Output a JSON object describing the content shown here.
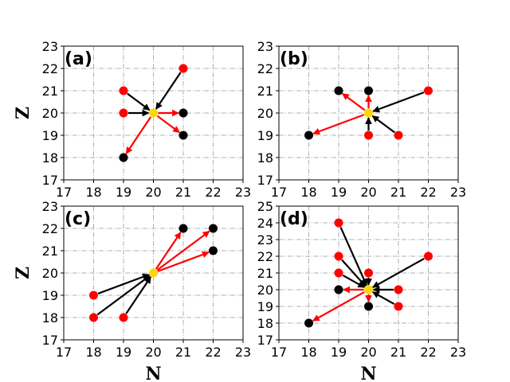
{
  "colors": {
    "red": "#ff0000",
    "black": "#000000",
    "center": "#ffd700",
    "grid": "#b0b0b0"
  },
  "chart_data": [
    {
      "type": "scatter",
      "panel_label": "(a)",
      "xlabel": "",
      "ylabel": "Z",
      "xlim": [
        17,
        23
      ],
      "ylim": [
        17,
        23
      ],
      "xticks": [
        "17",
        "18",
        "19",
        "20",
        "21",
        "22",
        "23"
      ],
      "yticks": [
        "17",
        "18",
        "19",
        "20",
        "21",
        "22",
        "23"
      ],
      "grid": true,
      "center": [
        20,
        20
      ],
      "red_points": [
        [
          19,
          21
        ],
        [
          19,
          20
        ],
        [
          21,
          22
        ]
      ],
      "black_points": [
        [
          21,
          20
        ],
        [
          21,
          19
        ],
        [
          19,
          18
        ]
      ],
      "black_arrows": [
        {
          "from": [
            19,
            21
          ],
          "to": [
            20,
            20
          ]
        },
        {
          "from": [
            19,
            20
          ],
          "to": [
            20,
            20
          ]
        },
        {
          "from": [
            21,
            22
          ],
          "to": [
            20,
            20
          ]
        }
      ],
      "red_arrows": [
        {
          "from": [
            20,
            20
          ],
          "to": [
            21,
            20
          ]
        },
        {
          "from": [
            20,
            20
          ],
          "to": [
            21,
            19
          ]
        },
        {
          "from": [
            20,
            20
          ],
          "to": [
            19,
            18
          ]
        }
      ]
    },
    {
      "type": "scatter",
      "panel_label": "(b)",
      "xlabel": "",
      "ylabel": "",
      "xlim": [
        17,
        23
      ],
      "ylim": [
        17,
        23
      ],
      "xticks": [
        "17",
        "18",
        "19",
        "20",
        "21",
        "22",
        "23"
      ],
      "yticks": [
        "17",
        "18",
        "19",
        "20",
        "21",
        "22",
        "23"
      ],
      "grid": true,
      "center": [
        20,
        20
      ],
      "red_points": [
        [
          22,
          21
        ],
        [
          20,
          19
        ],
        [
          21,
          19
        ]
      ],
      "black_points": [
        [
          19,
          21
        ],
        [
          20,
          21
        ],
        [
          18,
          19
        ]
      ],
      "black_arrows": [
        {
          "from": [
            22,
            21
          ],
          "to": [
            20,
            20
          ]
        },
        {
          "from": [
            20,
            19
          ],
          "to": [
            20,
            20
          ]
        },
        {
          "from": [
            21,
            19
          ],
          "to": [
            20,
            20
          ]
        }
      ],
      "red_arrows": [
        {
          "from": [
            20,
            20
          ],
          "to": [
            19,
            21
          ]
        },
        {
          "from": [
            20,
            20
          ],
          "to": [
            20,
            21
          ]
        },
        {
          "from": [
            20,
            20
          ],
          "to": [
            18,
            19
          ]
        }
      ]
    },
    {
      "type": "scatter",
      "panel_label": "(c)",
      "xlabel": "N",
      "ylabel": "Z",
      "xlim": [
        17,
        23
      ],
      "ylim": [
        17,
        23
      ],
      "xticks": [
        "17",
        "18",
        "19",
        "20",
        "21",
        "22",
        "23"
      ],
      "yticks": [
        "17",
        "18",
        "19",
        "20",
        "21",
        "22",
        "23"
      ],
      "grid": true,
      "center": [
        20,
        20
      ],
      "red_points": [
        [
          18,
          19
        ],
        [
          18,
          18
        ],
        [
          19,
          18
        ]
      ],
      "black_points": [
        [
          21,
          22
        ],
        [
          22,
          22
        ],
        [
          22,
          21
        ]
      ],
      "black_arrows": [
        {
          "from": [
            18,
            19
          ],
          "to": [
            20,
            20
          ]
        },
        {
          "from": [
            18,
            18
          ],
          "to": [
            20,
            20
          ]
        },
        {
          "from": [
            19,
            18
          ],
          "to": [
            20,
            20
          ]
        }
      ],
      "red_arrows": [
        {
          "from": [
            20,
            20
          ],
          "to": [
            21,
            22
          ]
        },
        {
          "from": [
            20,
            20
          ],
          "to": [
            22,
            22
          ]
        },
        {
          "from": [
            20,
            20
          ],
          "to": [
            22,
            21
          ]
        }
      ]
    },
    {
      "type": "scatter",
      "panel_label": "(d)",
      "xlabel": "N",
      "ylabel": "",
      "xlim": [
        17,
        23
      ],
      "ylim": [
        17,
        25
      ],
      "xticks": [
        "17",
        "18",
        "19",
        "20",
        "21",
        "22",
        "23"
      ],
      "yticks": [
        "17",
        "18",
        "19",
        "20",
        "21",
        "22",
        "23",
        "24",
        "25"
      ],
      "grid": true,
      "center": [
        20,
        20
      ],
      "red_points": [
        [
          19,
          24
        ],
        [
          19,
          22
        ],
        [
          19,
          21
        ],
        [
          20,
          21
        ],
        [
          22,
          22
        ],
        [
          21,
          20
        ],
        [
          21,
          19
        ]
      ],
      "black_points": [
        [
          19,
          20
        ],
        [
          20,
          19
        ],
        [
          18,
          18
        ]
      ],
      "black_arrows": [
        {
          "from": [
            19,
            24
          ],
          "to": [
            20,
            20
          ]
        },
        {
          "from": [
            19,
            22
          ],
          "to": [
            20,
            20
          ]
        },
        {
          "from": [
            19,
            21
          ],
          "to": [
            20,
            20
          ]
        },
        {
          "from": [
            20,
            21
          ],
          "to": [
            20,
            20
          ]
        },
        {
          "from": [
            22,
            22
          ],
          "to": [
            20,
            20
          ]
        },
        {
          "from": [
            21,
            20
          ],
          "to": [
            20,
            20
          ]
        },
        {
          "from": [
            21,
            19
          ],
          "to": [
            20,
            20
          ]
        }
      ],
      "red_arrows": [
        {
          "from": [
            20,
            20
          ],
          "to": [
            19,
            20
          ]
        },
        {
          "from": [
            20,
            20
          ],
          "to": [
            20,
            19
          ]
        },
        {
          "from": [
            20,
            20
          ],
          "to": [
            18,
            18
          ]
        }
      ]
    }
  ]
}
